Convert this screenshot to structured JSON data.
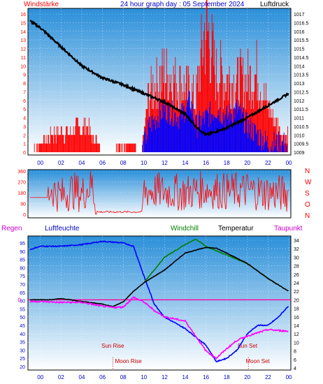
{
  "chart_data": [
    {
      "type": "line",
      "title": "24 hour graph day : 05 September 2024",
      "left_label": "Windstärke",
      "right_label": "Luftdruck",
      "colors": {
        "wind_bars": "#ff0000",
        "gust_bars": "#0000ff",
        "pressure": "#000000"
      },
      "hours": [
        "00",
        "02",
        "04",
        "06",
        "08",
        "10",
        "12",
        "14",
        "16",
        "18",
        "20",
        "22",
        "00"
      ],
      "wind_ticks": [
        "0",
        "1",
        "2",
        "3",
        "4",
        "5",
        "6",
        "7",
        "8",
        "9",
        "10",
        "11",
        "12",
        "13",
        "14",
        "15",
        "16"
      ],
      "pressure_ticks": [
        "1009",
        "1009.5",
        "1010",
        "1010.5",
        "1011",
        "1011.5",
        "1012",
        "1012.5",
        "1013",
        "1013.5",
        "1014",
        "1014.5",
        "1015",
        "1015.5",
        "1016",
        "1016.5",
        "1017"
      ],
      "pressure": {
        "x": [
          -1,
          0,
          2,
          4,
          6,
          8,
          10,
          12,
          14,
          15,
          16,
          18,
          20,
          22,
          24
        ],
        "y": [
          1016.6,
          1016.2,
          1015.1,
          1014.0,
          1013.3,
          1012.9,
          1012.4,
          1011.9,
          1011.2,
          1010.5,
          1010.0,
          1010.4,
          1011.0,
          1011.7,
          1012.4
        ]
      },
      "wind": {
        "x": [
          -1,
          1.1,
          1.3,
          4.5,
          6.1,
          8.8,
          9.8,
          10.5,
          12,
          13.5,
          15,
          16,
          17,
          19,
          21,
          22,
          23.5
        ],
        "y": [
          0,
          2,
          2,
          3,
          0,
          1,
          0,
          7,
          9,
          8,
          6,
          15,
          9,
          8,
          9,
          5,
          2
        ]
      },
      "gust": {
        "x": [
          9.8,
          10.5,
          12,
          13.5,
          14.5,
          15,
          16,
          17,
          18,
          19,
          20,
          21,
          22,
          23.5
        ],
        "y": [
          0,
          3,
          5,
          4,
          6,
          3,
          4,
          5,
          4,
          5,
          3,
          2,
          1,
          1
        ]
      }
    },
    {
      "type": "line",
      "title": "",
      "dir_ticks": [
        "0",
        "90",
        "180",
        "270",
        "360"
      ],
      "dir_letters": [
        "N",
        "W",
        "S",
        "O",
        "N"
      ],
      "color": "#ff0000",
      "direction": {
        "x": [
          -1,
          0.7,
          1,
          2,
          3,
          4,
          5,
          5.5,
          6,
          9,
          9.8,
          10,
          12,
          14,
          16,
          18,
          20,
          22,
          24
        ],
        "y": [
          140,
          140,
          220,
          150,
          200,
          170,
          250,
          20,
          20,
          20,
          20,
          200,
          190,
          180,
          210,
          190,
          200,
          180,
          170
        ]
      }
    },
    {
      "type": "line",
      "title": "",
      "labels": {
        "rain": "Regen",
        "humidity": "Luftfeuchte",
        "windchill": "Windchill",
        "temperature": "Temperatur",
        "dewpoint": "Taupunkt"
      },
      "humidity_ticks": [
        "20",
        "25",
        "30",
        "35",
        "40",
        "45",
        "50",
        "55",
        "60",
        "65",
        "70",
        "75",
        "80",
        "85",
        "90",
        "95"
      ],
      "temp_ticks": [
        "4",
        "6",
        "8",
        "10",
        "12",
        "14",
        "16",
        "18",
        "20",
        "22",
        "24",
        "26",
        "28",
        "30",
        "32",
        "34"
      ],
      "rain_value_label": "0",
      "events": {
        "sunrise": "Sun Rise",
        "moonrise": "Moon Rise",
        "sunset": "Sun Set",
        "moonset": "Moon Set"
      },
      "event_hours": {
        "sunrise": 7.0,
        "moonrise": 8.5,
        "sunset": 20.0,
        "moonset": 21.0
      },
      "colors": {
        "humidity": "#0000ff",
        "windchill": "#008000",
        "temperature": "#000000",
        "dewpoint": "#ff00ff",
        "rain": "#ff00a0"
      },
      "humidity": {
        "x": [
          -1,
          0,
          2,
          4,
          6,
          8,
          9,
          10,
          11,
          12,
          14,
          16,
          17,
          18,
          19,
          20,
          21,
          22,
          23,
          24
        ],
        "y": [
          91,
          93,
          93,
          94,
          96,
          95,
          93,
          75,
          58,
          50,
          43,
          33,
          23,
          25,
          30,
          40,
          45,
          45,
          50,
          57
        ]
      },
      "temperature": {
        "x": [
          -1,
          0,
          1,
          2,
          4,
          6,
          7,
          8,
          9,
          10,
          12,
          14,
          16,
          17,
          18,
          20,
          22,
          23,
          24
        ],
        "y": [
          20,
          20,
          20,
          20.3,
          19.6,
          19,
          18.4,
          19.5,
          22,
          24,
          27,
          31,
          32.3,
          32.1,
          31,
          28.5,
          25,
          23.5,
          22
        ]
      },
      "windchill": {
        "x": [
          10,
          12,
          14,
          15,
          15.5,
          16,
          18,
          20,
          22,
          23
        ],
        "y": [
          24,
          30,
          33,
          34.2,
          33.5,
          32.5,
          30.5,
          28.5,
          25,
          23.5
        ]
      },
      "dewpoint": {
        "x": [
          -1,
          0,
          2,
          4,
          6,
          7,
          8,
          9,
          10,
          11,
          12,
          14,
          16,
          17,
          18,
          19,
          20,
          22,
          24
        ],
        "y": [
          19.6,
          19.6,
          19.4,
          19.4,
          18.5,
          18.2,
          18.3,
          20.6,
          19.5,
          17.5,
          16,
          15,
          8,
          6.3,
          8.5,
          10.5,
          11.5,
          13,
          12.6
        ]
      },
      "rain_level": 0
    }
  ]
}
